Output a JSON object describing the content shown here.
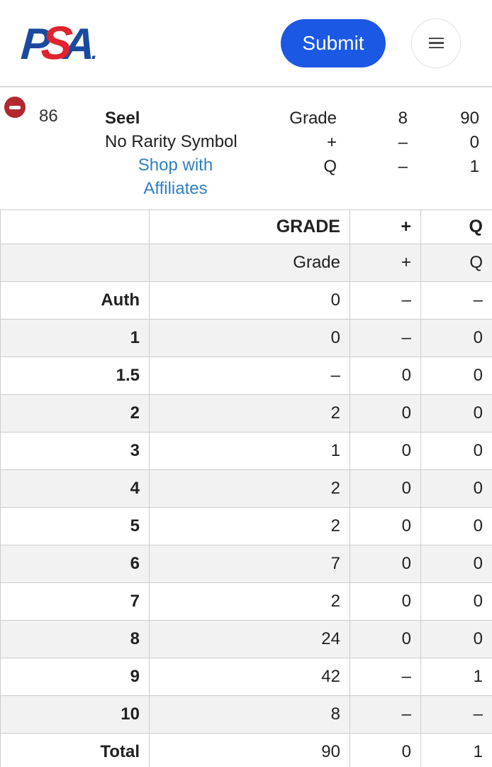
{
  "header": {
    "logo_parts": {
      "p": "P",
      "s": "S",
      "a": "A",
      "dot": "."
    },
    "submit_label": "Submit"
  },
  "item": {
    "card_number": "86",
    "card_name": "Seel",
    "variety": "No Rarity Symbol",
    "affiliate_link": "Shop with Affiliates",
    "summary": {
      "rows": [
        {
          "label": "Grade",
          "value_a": "8",
          "value_b": "90"
        },
        {
          "label": "+",
          "value_a": "–",
          "value_b": "0"
        },
        {
          "label": "Q",
          "value_a": "–",
          "value_b": "1"
        }
      ]
    }
  },
  "table": {
    "head": {
      "label": "",
      "grade": "GRADE",
      "plus": "+",
      "q": "Q"
    },
    "subhead": {
      "label": "",
      "grade": "Grade",
      "plus": "+",
      "q": "Q"
    },
    "rows": [
      {
        "label": "Auth",
        "grade": "0",
        "plus": "–",
        "q": "–"
      },
      {
        "label": "1",
        "grade": "0",
        "plus": "–",
        "q": "0"
      },
      {
        "label": "1.5",
        "grade": "–",
        "plus": "0",
        "q": "0"
      },
      {
        "label": "2",
        "grade": "2",
        "plus": "0",
        "q": "0"
      },
      {
        "label": "3",
        "grade": "1",
        "plus": "0",
        "q": "0"
      },
      {
        "label": "4",
        "grade": "2",
        "plus": "0",
        "q": "0"
      },
      {
        "label": "5",
        "grade": "2",
        "plus": "0",
        "q": "0"
      },
      {
        "label": "6",
        "grade": "7",
        "plus": "0",
        "q": "0"
      },
      {
        "label": "7",
        "grade": "2",
        "plus": "0",
        "q": "0"
      },
      {
        "label": "8",
        "grade": "24",
        "plus": "0",
        "q": "0"
      },
      {
        "label": "9",
        "grade": "42",
        "plus": "–",
        "q": "1"
      },
      {
        "label": "10",
        "grade": "8",
        "plus": "–",
        "q": "–"
      },
      {
        "label": "Total",
        "grade": "90",
        "plus": "0",
        "q": "1"
      }
    ]
  },
  "colors": {
    "submit_blue": "#1b58e4",
    "link_blue": "#2e80c4",
    "logo_blue": "#1a4a9e",
    "logo_red": "#e0232d",
    "remove_red": "#b3282f",
    "row_stripe": "#f2f2f2",
    "table_border": "#cccccc",
    "header_divider": "#d8d8d8"
  }
}
